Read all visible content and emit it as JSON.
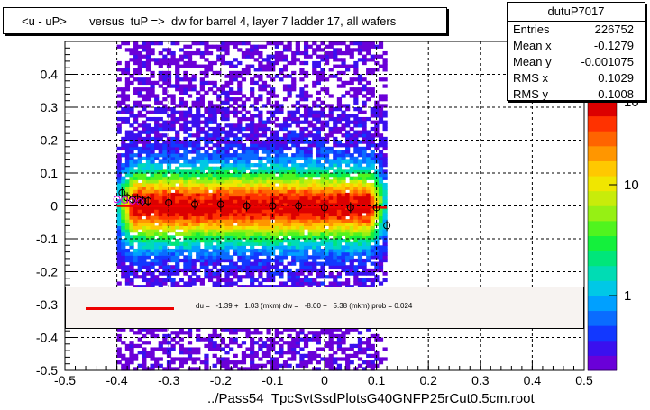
{
  "title": "<u - uP>       versus  tuP =>  dw for barrel 4, layer 7 ladder 17, all wafers",
  "stats": {
    "name": "dutuP7017",
    "rows": [
      {
        "label": "Entries",
        "value": "226752"
      },
      {
        "label": "Mean x",
        "value": "-0.1279"
      },
      {
        "label": "Mean y",
        "value": "-0.001075"
      },
      {
        "label": "RMS x",
        "value": "0.1029"
      },
      {
        "label": "RMS y",
        "value": "0.1008"
      }
    ]
  },
  "legend": {
    "text": "du =   -1.39 +   1.03 (mkm) dw =   -8.00 +   5.38 (mkm) prob = 0.024",
    "line_color": "#ee0000"
  },
  "colorbar": {
    "labels": [
      "1",
      "10",
      "10"
    ],
    "exponent_label": "2"
  },
  "chart_data": {
    "type": "heatmap",
    "title": "<u - uP>       versus  tuP =>  dw for barrel 4, layer 7 ladder 17, all wafers",
    "xlabel": "../Pass54_TpcSvtSsdPlotsG40GNFP25rCut0.5cm.root",
    "ylabel": "",
    "xlim": [
      -0.5,
      0.5
    ],
    "ylim": [
      -0.5,
      0.5
    ],
    "xticks": [
      "-0.5",
      "-0.4",
      "-0.3",
      "-0.2",
      "-0.1",
      "0",
      "0.1",
      "0.2",
      "0.3",
      "0.4",
      "0.5"
    ],
    "yticks": [
      "-0.5",
      "-0.4",
      "-0.3",
      "-0.2",
      "-0.1",
      "0",
      "0.1",
      "0.2",
      "0.3",
      "0.4"
    ],
    "grid": true,
    "z_scale": "log",
    "band": {
      "x_range": [
        -0.4,
        0.12
      ],
      "y_center": 0.0,
      "y_rms": 0.1008
    },
    "fit_line": {
      "x_range": [
        -0.4,
        0.12
      ],
      "y": [
        0.0,
        -0.005
      ],
      "color": "#ee0000"
    },
    "profile_points": [
      {
        "x": -0.39,
        "y": 0.04
      },
      {
        "x": -0.38,
        "y": 0.025
      },
      {
        "x": -0.37,
        "y": 0.02
      },
      {
        "x": -0.36,
        "y": 0.02
      },
      {
        "x": -0.35,
        "y": 0.015
      },
      {
        "x": -0.34,
        "y": 0.015
      },
      {
        "x": -0.3,
        "y": 0.01
      },
      {
        "x": -0.25,
        "y": 0.005
      },
      {
        "x": -0.2,
        "y": 0.005
      },
      {
        "x": -0.15,
        "y": 0.0
      },
      {
        "x": -0.1,
        "y": 0.0
      },
      {
        "x": -0.05,
        "y": 0.0
      },
      {
        "x": 0.0,
        "y": -0.005
      },
      {
        "x": 0.05,
        "y": -0.005
      },
      {
        "x": 0.1,
        "y": -0.005
      },
      {
        "x": 0.12,
        "y": -0.06
      }
    ]
  }
}
